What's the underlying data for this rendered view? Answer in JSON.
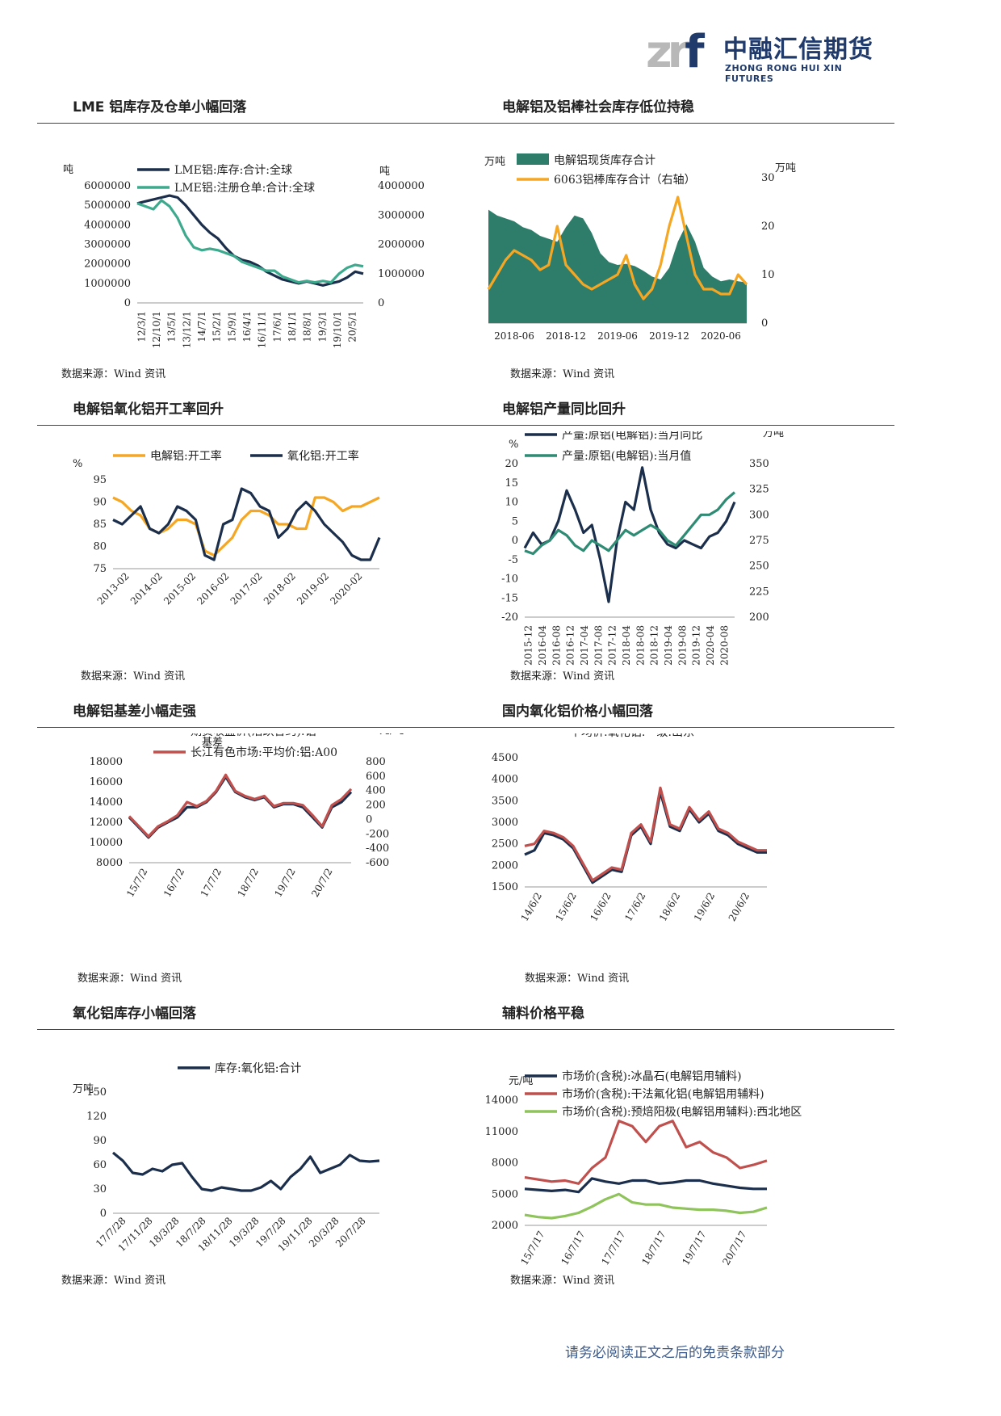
{
  "header": {
    "logo_mark": "zrf",
    "company_cn": "中融汇信期货",
    "company_en": "ZHONG RONG HUI XIN FUTURES"
  },
  "footer": "请务必阅读正文之后的免责条款部分",
  "charts": [
    {
      "title": "LME 铝库存及仓单小幅回落",
      "source": "数据来源：Wind 资讯",
      "chart_data": {
        "type": "line",
        "left_unit": "吨",
        "right_unit": "吨",
        "left_ticks": [
          "6000000",
          "5000000",
          "4000000",
          "3000000",
          "2000000",
          "1000000",
          "0"
        ],
        "right_ticks": [
          "4000000",
          "3000000",
          "2000000",
          "1000000",
          "0"
        ],
        "ylim": [
          0,
          6000000
        ],
        "y2lim": [
          0,
          4000000
        ],
        "x_ticks": [
          "12/3/1",
          "12/10/1",
          "13/5/1",
          "13/12/1",
          "14/7/1",
          "15/2/1",
          "15/9/1",
          "16/4/1",
          "16/11/1",
          "17/6/1",
          "18/1/1",
          "18/8/1",
          "19/3/1",
          "19/10/1",
          "20/5/1"
        ],
        "series": [
          {
            "name": "LME铝:库存:合计:全球",
            "axis": "left",
            "color": "#1b2e4b",
            "values": [
              5100000,
              5200000,
              5300000,
              5400000,
              5500000,
              5400000,
              5000000,
              4500000,
              4000000,
              3600000,
              3300000,
              2800000,
              2400000,
              2200000,
              2100000,
              1900000,
              1600000,
              1400000,
              1200000,
              1100000,
              1000000,
              1100000,
              1000000,
              900000,
              1000000,
              1100000,
              1300000,
              1600000,
              1500000
            ]
          },
          {
            "name": "LME铝:注册仓单:合计:全球",
            "axis": "right",
            "color": "#3daa8e",
            "values": [
              3400000,
              3300000,
              3200000,
              3500000,
              3300000,
              2900000,
              2300000,
              1900000,
              1800000,
              1850000,
              1800000,
              1700000,
              1600000,
              1400000,
              1300000,
              1200000,
              1100000,
              1100000,
              900000,
              800000,
              700000,
              750000,
              700000,
              750000,
              700000,
              1000000,
              1200000,
              1300000,
              1250000
            ]
          }
        ]
      }
    },
    {
      "title": "电解铝及铝棒社会库存低位持稳",
      "source": "数据来源：Wind 资讯",
      "chart_data": {
        "type": "area",
        "left_unit": "万吨",
        "right_unit": "万吨",
        "left_ticks": [
          "250",
          "200",
          "150",
          "100",
          "50",
          "0"
        ],
        "right_ticks": [
          "30",
          "20",
          "10",
          "0"
        ],
        "ylim": [
          0,
          250
        ],
        "y2lim": [
          0,
          30
        ],
        "x_ticks": [
          "2018-06",
          "2018-12",
          "2019-06",
          "2019-12",
          "2020-06"
        ],
        "series": [
          {
            "name": "电解铝现货库存合计",
            "axis": "left",
            "color": "#2e7d6b",
            "values": [
              195,
              185,
              180,
              175,
              165,
              160,
              150,
              145,
              140,
              165,
              185,
              180,
              155,
              120,
              105,
              100,
              102,
              98,
              90,
              80,
              75,
              95,
              140,
              170,
              140,
              95,
              80,
              72,
              75,
              72,
              70
            ]
          },
          {
            "name": "6063铝棒库存合计（右轴）",
            "axis": "right",
            "color": "#f5a623",
            "values": [
              7,
              10,
              13,
              15,
              14,
              13,
              11,
              12,
              20,
              12,
              10,
              8,
              7,
              8,
              9,
              10,
              14,
              8,
              5,
              7,
              12,
              20,
              26,
              18,
              10,
              7,
              7,
              6,
              6,
              10,
              8
            ]
          }
        ]
      }
    },
    {
      "title": "电解铝氧化铝开工率回升",
      "source": "数据来源：Wind 资讯",
      "chart_data": {
        "type": "line",
        "left_unit": "%",
        "left_ticks": [
          "95",
          "90",
          "85",
          "80",
          "75"
        ],
        "ylim": [
          75,
          95
        ],
        "x_ticks": [
          "2013-02",
          "2014-02",
          "2015-02",
          "2016-02",
          "2017-02",
          "2018-02",
          "2019-02",
          "2020-02"
        ],
        "series": [
          {
            "name": "电解铝:开工率",
            "axis": "left",
            "color": "#f5a623",
            "values": [
              91,
              90,
              88,
              87,
              84,
              83,
              84,
              86,
              86,
              85,
              79,
              78,
              80,
              82,
              86,
              88,
              88,
              87,
              85,
              85,
              84,
              84,
              91,
              91,
              90,
              88,
              89,
              89,
              90,
              91
            ]
          },
          {
            "name": "氧化铝:开工率",
            "axis": "left",
            "color": "#1b2e4b",
            "values": [
              86,
              85,
              87,
              89,
              84,
              83,
              85,
              89,
              88,
              86,
              78,
              77,
              85,
              86,
              93,
              92,
              89,
              88,
              82,
              84,
              88,
              90,
              88,
              85,
              83,
              81,
              78,
              77,
              77,
              82
            ]
          }
        ]
      }
    },
    {
      "title": "电解铝产量同比回升",
      "source": "数据来源：Wind 资讯",
      "chart_data": {
        "type": "line",
        "left_unit": "%",
        "right_unit": "万吨",
        "left_ticks": [
          "20",
          "15",
          "10",
          "5",
          "0",
          "-5",
          "-10",
          "-15",
          "-20"
        ],
        "right_ticks": [
          "350",
          "325",
          "300",
          "275",
          "250",
          "225",
          "200"
        ],
        "ylim": [
          -20,
          20
        ],
        "y2lim": [
          200,
          350
        ],
        "x_ticks": [
          "2015-12",
          "2016-04",
          "2016-08",
          "2016-12",
          "2017-04",
          "2017-08",
          "2017-12",
          "2018-04",
          "2018-08",
          "2018-12",
          "2019-04",
          "2019-08",
          "2019-12",
          "2020-04",
          "2020-08"
        ],
        "series": [
          {
            "name": "产量:原铝(电解铝):当月同比",
            "axis": "left",
            "color": "#1b2e4b",
            "values": [
              -2,
              2,
              -1,
              0,
              5,
              13,
              8,
              2,
              4,
              -5,
              -16,
              0,
              10,
              8,
              19,
              8,
              2,
              -1,
              -2,
              0,
              -1,
              -2,
              1,
              2,
              5,
              10
            ]
          },
          {
            "name": "产量:原铝(电解铝):当月值",
            "axis": "right",
            "color": "#2e8b74",
            "values": [
              265,
              262,
              270,
              275,
              285,
              280,
              270,
              265,
              275,
              270,
              265,
              275,
              285,
              280,
              285,
              290,
              285,
              275,
              270,
              280,
              290,
              300,
              300,
              305,
              315,
              322
            ]
          }
        ]
      }
    },
    {
      "title": "电解铝基差小幅走强",
      "source": "数据来源：Wind 资讯",
      "chart_data": {
        "type": "line",
        "left_unit": "元/吨",
        "right_unit": "元/吨",
        "right_label": "基差",
        "left_ticks": [
          "18000",
          "16000",
          "14000",
          "12000",
          "10000",
          "8000"
        ],
        "right_ticks": [
          "800",
          "600",
          "400",
          "200",
          "0",
          "-200",
          "-400",
          "-600"
        ],
        "ylim": [
          8000,
          18000
        ],
        "y2lim": [
          -600,
          800
        ],
        "x_ticks": [
          "15/7/2",
          "16/7/2",
          "17/7/2",
          "18/7/2",
          "19/7/2",
          "20/7/2"
        ],
        "series": [
          {
            "name": "期货收盘价(活跃合约):铝",
            "axis": "left",
            "color": "#1b2e4b",
            "values": [
              12500,
              11500,
              10500,
              11500,
              12000,
              12500,
              13500,
              13500,
              14000,
              15000,
              16500,
              15000,
              14500,
              14200,
              14500,
              13500,
              13800,
              13800,
              13500,
              12500,
              11500,
              13500,
              14000,
              15000
            ]
          },
          {
            "name": "长江有色市场:平均价:铝:A00",
            "axis": "left",
            "color": "#c0504d",
            "values": [
              12600,
              11600,
              10600,
              11600,
              12100,
              12700,
              14000,
              13600,
              14100,
              15100,
              16700,
              15100,
              14600,
              14300,
              14600,
              13600,
              13900,
              13900,
              13700,
              12700,
              11600,
              13700,
              14300,
              15300
            ]
          }
        ]
      }
    },
    {
      "title": "国内氧化铝价格小幅回落",
      "source": "数据来源：Wind 资讯",
      "chart_data": {
        "type": "line",
        "left_unit": "元/吨",
        "left_ticks": [
          "4500",
          "4000",
          "3500",
          "3000",
          "2500",
          "2000",
          "1500"
        ],
        "ylim": [
          1500,
          4500
        ],
        "x_ticks": [
          "14/6/2",
          "15/6/2",
          "16/6/2",
          "17/6/2",
          "18/6/2",
          "19/6/2",
          "20/6/2"
        ],
        "series": [
          {
            "name": "平均价:氧化铝:一级:广西百色",
            "axis": "left",
            "color": "#1b2e4b",
            "values": [
              2250,
              2350,
              2750,
              2700,
              2600,
              2400,
              2000,
              1600,
              1750,
              1900,
              1850,
              2700,
              2900,
              2500,
              3700,
              2900,
              2800,
              3300,
              3000,
              3200,
              2800,
              2700,
              2500,
              2400,
              2300,
              2300
            ]
          },
          {
            "name": "平均价:氧化铝:一级:山东",
            "axis": "left",
            "color": "#c0504d",
            "values": [
              2450,
              2500,
              2800,
              2750,
              2650,
              2450,
              2050,
              1650,
              1800,
              1950,
              1900,
              2750,
              2950,
              2550,
              3800,
              2950,
              2850,
              3350,
              3050,
              3250,
              2850,
              2750,
              2550,
              2450,
              2350,
              2350
            ]
          }
        ]
      }
    },
    {
      "title": "氧化铝库存小幅回落",
      "source": "数据来源：Wind 资讯",
      "chart_data": {
        "type": "line",
        "left_unit": "万吨",
        "left_ticks": [
          "150",
          "120",
          "90",
          "60",
          "30",
          "0"
        ],
        "ylim": [
          0,
          150
        ],
        "x_ticks": [
          "17/7/28",
          "17/11/28",
          "18/3/28",
          "18/7/28",
          "18/11/28",
          "19/3/28",
          "19/7/28",
          "19/11/28",
          "20/3/28",
          "20/7/28"
        ],
        "series": [
          {
            "name": "库存:氧化铝:合计",
            "axis": "left",
            "color": "#1b2e4b",
            "values": [
              75,
              65,
              50,
              48,
              55,
              52,
              60,
              62,
              45,
              30,
              28,
              32,
              30,
              28,
              28,
              32,
              40,
              30,
              45,
              55,
              70,
              50,
              55,
              60,
              72,
              65,
              64,
              65
            ]
          }
        ]
      }
    },
    {
      "title": "辅料价格平稳",
      "source": "数据来源：Wind 资讯",
      "chart_data": {
        "type": "line",
        "left_unit": "元/吨",
        "left_ticks": [
          "14000",
          "11000",
          "8000",
          "5000",
          "2000"
        ],
        "ylim": [
          2000,
          14000
        ],
        "x_ticks": [
          "15/7/17",
          "16/7/17",
          "17/7/17",
          "18/7/17",
          "19/7/17",
          "20/7/17"
        ],
        "series": [
          {
            "name": "市场价(含税):冰晶石(电解铝用辅料)",
            "axis": "left",
            "color": "#1b2e4b",
            "values": [
              5500,
              5400,
              5300,
              5400,
              5200,
              6500,
              6200,
              6000,
              6300,
              6300,
              6000,
              6100,
              6300,
              6300,
              6000,
              5800,
              5600,
              5500,
              5500
            ]
          },
          {
            "name": "市场价(含税):干法氟化铝(电解铝用辅料)",
            "axis": "left",
            "color": "#c0504d",
            "values": [
              6600,
              6400,
              6200,
              6300,
              6000,
              7500,
              8500,
              12000,
              11500,
              10000,
              11500,
              12000,
              9500,
              10000,
              9000,
              8500,
              7500,
              7800,
              8200
            ]
          },
          {
            "name": "市场价(含税):预焙阳极(电解铝用辅料):西北地区",
            "axis": "left",
            "color": "#8fc35b",
            "values": [
              3000,
              2800,
              2700,
              2900,
              3200,
              3800,
              4500,
              5000,
              4200,
              4000,
              4000,
              3700,
              3600,
              3500,
              3500,
              3400,
              3200,
              3300,
              3700
            ]
          }
        ]
      }
    }
  ]
}
